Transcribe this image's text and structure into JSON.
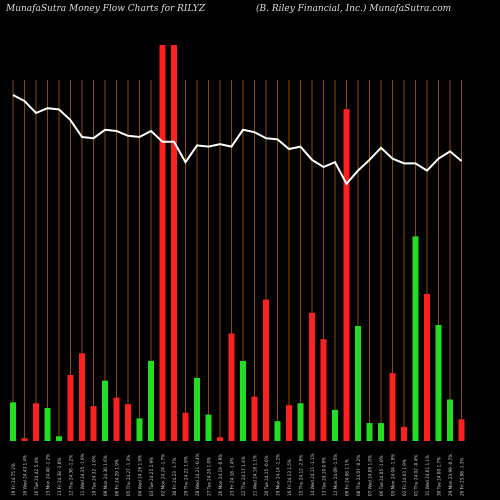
{
  "header": {
    "left": "MunafaSutra  Money Flow  Charts for RILYZ",
    "right": "(B. Riley Financial,  Inc.) MunafaSutra.com"
  },
  "colors": {
    "background": "#000000",
    "gridline": "#8a4a0a",
    "up": "#22dd22",
    "down": "#ff2020",
    "line": "#ffffff",
    "label": "#cccccc"
  },
  "chart_data": {
    "type": "bar",
    "title": "",
    "xlabel": "",
    "ylabel": "",
    "categories": [
      "19 Fri 24.75 2%",
      "16 Wed 24.43 1.4%",
      "16 Tue 24.42 5.4%",
      "15 Mon 24.40 -1.2%",
      "13 Fri 24.38 -2.0%",
      "12 Thu 24.36 -1.2%",
      "11 Wed 24.35 -1.9%",
      "10 Tue 24.32 -1.0%",
      "09 Mon 24.30 1.6%",
      "06 Fri 24.29 1.9%",
      "05 Thu 24.27 -1.3%",
      "04 Wed 24.26 1.9%",
      "03 Tue 24.25 2.9%",
      "02 Mon 24.24 -1.7%",
      "30 Fri 24.23 -1.7%",
      "29 Thu 24.22 1.9%",
      "28 Wed 24.21 -0.4%",
      "27 Tue 24.20 1.0%",
      "26 Mon 24.19 -0.9%",
      "23 Fri 24.18 -1.4%",
      "22 Thu 24.17 1.4%",
      "21 Wed 24.16 1.1%",
      "20 Tue 24.15 -0.6%",
      "19 Mon 24.14 -1.2%",
      "16 Fri 24.13 1.5%",
      "15 Thu 24.12 -2.9%",
      "14 Wed 24.11 -1.1%",
      "13 Tue 24.10 0.9%",
      "12 Mon 24.09 -1.5%",
      "09 Fri 24.08 1.1%",
      "08 Thu 24.07 -0.2%",
      "07 Wed 24.06 1.0%",
      "06 Tue 24.05 -1.0%",
      "05 Mon 24.04 -1.9%",
      "02 Fri 24.03 1.9%",
      "01 Thu 24.02 -0.4%",
      "31 Wed 24.01 1.1%",
      "30 Tue 24.00 1.7%",
      "29 Mon 23.99 -0.7%",
      "26 Fri 23.98 -1.3%"
    ],
    "bar_values": [
      41,
      3,
      40,
      35,
      5,
      70,
      93,
      37,
      64,
      46,
      39,
      24,
      85,
      420,
      420,
      30,
      67,
      28,
      4,
      114,
      85,
      47,
      150,
      21,
      38,
      40,
      136,
      108,
      33,
      352,
      122,
      19,
      19,
      72,
      15,
      217,
      156,
      123,
      44,
      23
    ],
    "bar_direction": [
      "up",
      "down",
      "down",
      "up",
      "up",
      "down",
      "down",
      "down",
      "up",
      "down",
      "down",
      "up",
      "up",
      "down",
      "down",
      "down",
      "up",
      "up",
      "down",
      "down",
      "up",
      "down",
      "down",
      "up",
      "down",
      "up",
      "down",
      "down",
      "up",
      "down",
      "up",
      "up",
      "up",
      "down",
      "down",
      "up",
      "down",
      "up",
      "up",
      "down"
    ],
    "line_values": [
      100,
      95,
      85,
      89,
      88,
      79,
      65,
      64,
      71,
      70,
      66,
      65,
      70,
      61,
      61,
      44,
      58,
      57,
      59,
      57,
      71,
      69,
      64,
      63,
      55,
      57,
      46,
      40,
      44,
      26,
      37,
      46,
      56,
      47,
      43,
      43,
      37,
      47,
      53,
      45
    ],
    "bar_ylim": [
      0,
      420
    ],
    "line_ylim": [
      0,
      100
    ]
  }
}
